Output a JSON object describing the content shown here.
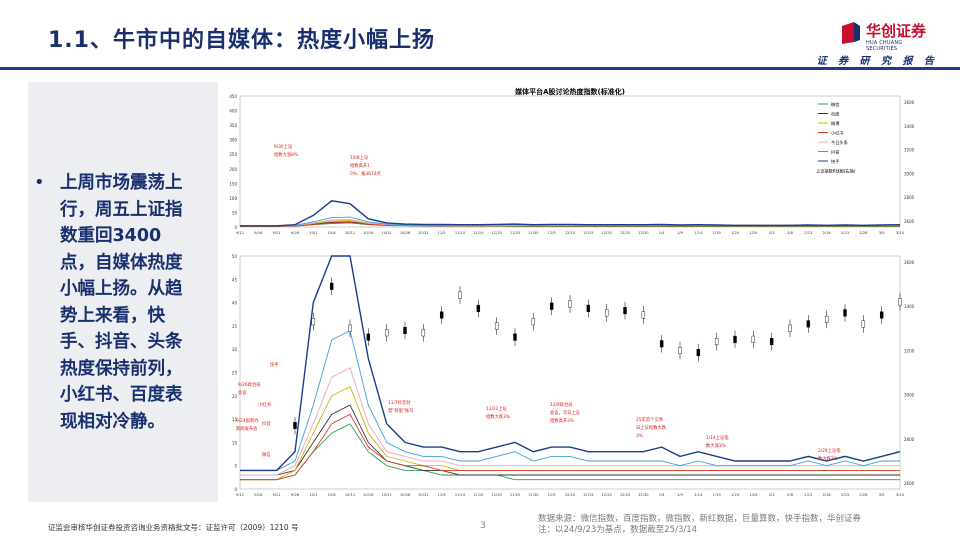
{
  "header": {
    "title": "1.1、牛市中的自媒体：热度小幅上扬",
    "logo_cn": "华创证券",
    "logo_en": "HUA CHUANG SECURITIES",
    "slogan": "证 券 研 究 报 告"
  },
  "summary": {
    "bullet_icon": "•",
    "text": "上周市场震荡上行，周五上证指数重回3400点，自媒体热度小幅上扬。从趋势上来看，快手、抖音、头条热度保持前列，小红书、百度表现相对冷静。"
  },
  "colors": {
    "brand_navy": "#1a2f6e",
    "brand_red": "#c8102e",
    "weixin": "#2e9e4f",
    "baidu": "#333333",
    "weibo": "#c8b800",
    "xiaohongshu": "#d63a2a",
    "jinritoutiao": "#f2a3c4",
    "douyin": "#3aa0d8",
    "kuaishou": "#1a3d8f",
    "annotation_red": "#d4201a"
  },
  "chart_data": {
    "type": "line",
    "title": "媒体平台A股讨论热度指数(标准化)",
    "legend": [
      "微信",
      "百度",
      "微博",
      "小红书",
      "今日头条",
      "抖音",
      "快手",
      "上证指数K线图(右轴)"
    ],
    "legend_placement": "top-right",
    "panels": [
      {
        "y_left_ticks": [
          "450",
          "400",
          "350",
          "300",
          "250",
          "200",
          "150",
          "100",
          "50",
          "0"
        ],
        "y_right_ticks": [
          "3600",
          "3400",
          "3200",
          "3000",
          "2800",
          "2600"
        ],
        "annotations": [
          "9/30上证指数大涨8%",
          "10/8上证指数高开10%，报3674点"
        ]
      },
      {
        "y_left_ticks": [
          "50",
          "45",
          "40",
          "35",
          "30",
          "25",
          "20",
          "15",
          "10",
          "5",
          "0"
        ],
        "y_right_ticks": [
          "3600",
          "3400",
          "3200",
          "3000",
          "2800",
          "2600"
        ],
        "annotations": [
          "快手",
          "9/26政治局会议",
          "小红书",
          "9/24国新办新闻发布会",
          "抖音",
          "微信",
          "11/7抖音封禁\"荐股\"账号",
          "11/22上证指数大跌3%",
          "12/9政治局会议，次日上证指数高开3%",
          "25年首个交易日上证指数大跌3%",
          "1/14上证指数大涨3%",
          "2/28上证指数大跌2%"
        ]
      }
    ],
    "x_ticks": [
      "9/11",
      "9/16",
      "9/21",
      "9/26",
      "10/1",
      "10/6",
      "10/11",
      "10/16",
      "10/21",
      "10/26",
      "10/31",
      "11/5",
      "11/10",
      "11/15",
      "11/20",
      "11/25",
      "11/30",
      "12/5",
      "12/10",
      "12/15",
      "12/20",
      "12/25",
      "12/30",
      "1/4",
      "1/9",
      "1/14",
      "1/19",
      "1/24",
      "1/29",
      "2/3",
      "2/8",
      "2/13",
      "2/18",
      "2/23",
      "2/28",
      "3/5",
      "3/10"
    ],
    "series": [
      {
        "name": "微信",
        "values": [
          2,
          2,
          2,
          3,
          8,
          12,
          14,
          8,
          5,
          4,
          4,
          3,
          3,
          3,
          3,
          2,
          2,
          2,
          2,
          2,
          2,
          2,
          2,
          2,
          2,
          2,
          2,
          2,
          2,
          2,
          2,
          2,
          2,
          2,
          2,
          2,
          2
        ]
      },
      {
        "name": "百度",
        "values": [
          3,
          3,
          3,
          4,
          10,
          16,
          18,
          10,
          6,
          5,
          4,
          4,
          3,
          3,
          3,
          3,
          3,
          3,
          3,
          3,
          3,
          3,
          3,
          3,
          3,
          3,
          3,
          3,
          3,
          3,
          3,
          3,
          3,
          3,
          3,
          3,
          3
        ]
      },
      {
        "name": "微博",
        "values": [
          2,
          2,
          2,
          4,
          12,
          20,
          22,
          12,
          7,
          6,
          5,
          5,
          4,
          4,
          4,
          4,
          4,
          4,
          4,
          4,
          4,
          4,
          4,
          4,
          4,
          4,
          4,
          4,
          4,
          4,
          4,
          4,
          4,
          4,
          4,
          4,
          4
        ]
      },
      {
        "name": "小红书",
        "values": [
          2,
          2,
          2,
          3,
          8,
          14,
          16,
          9,
          6,
          5,
          5,
          4,
          4,
          4,
          4,
          4,
          4,
          4,
          4,
          4,
          4,
          4,
          4,
          4,
          4,
          4,
          4,
          4,
          4,
          4,
          4,
          4,
          4,
          4,
          4,
          4,
          4
        ]
      },
      {
        "name": "今日头条",
        "values": [
          3,
          3,
          3,
          5,
          14,
          24,
          26,
          14,
          8,
          7,
          6,
          6,
          5,
          5,
          5,
          5,
          5,
          5,
          5,
          5,
          5,
          5,
          5,
          5,
          5,
          5,
          5,
          5,
          5,
          5,
          5,
          5,
          5,
          5,
          5,
          5,
          5
        ]
      },
      {
        "name": "抖音",
        "values": [
          4,
          4,
          4,
          6,
          18,
          32,
          34,
          18,
          10,
          8,
          7,
          7,
          6,
          6,
          7,
          8,
          6,
          7,
          7,
          6,
          6,
          6,
          6,
          6,
          5,
          6,
          5,
          5,
          5,
          5,
          5,
          6,
          5,
          6,
          5,
          6,
          6
        ]
      },
      {
        "name": "快手",
        "values": [
          4,
          4,
          4,
          8,
          40,
          90,
          80,
          28,
          14,
          10,
          9,
          9,
          8,
          8,
          9,
          10,
          8,
          9,
          9,
          8,
          8,
          8,
          8,
          9,
          7,
          8,
          7,
          6,
          6,
          6,
          6,
          7,
          6,
          7,
          6,
          7,
          8
        ]
      }
    ],
    "sh_index": [
      2720,
      2720,
      2740,
      2860,
      3330,
      3490,
      3300,
      3260,
      3280,
      3290,
      3280,
      3360,
      3450,
      3390,
      3310,
      3260,
      3330,
      3400,
      3410,
      3390,
      3370,
      3380,
      3360,
      3230,
      3200,
      3190,
      3240,
      3250,
      3250,
      3240,
      3300,
      3320,
      3340,
      3370,
      3320,
      3360,
      3420
    ],
    "y1_range": [
      0,
      450
    ],
    "y2_range_left": [
      0,
      50
    ],
    "y_right_range": [
      2600,
      3600
    ]
  },
  "footer": {
    "license": "证监会审核华创证券投资咨询业务资格批文号：证监许可（2009）1210 号",
    "page": "3",
    "source": "数据来源：微信指数，百度指数，微指数，新红数据，巨量算数，快手指数，华创证券",
    "note": "注：以24/9/23为基点，数据截至25/3/14"
  }
}
